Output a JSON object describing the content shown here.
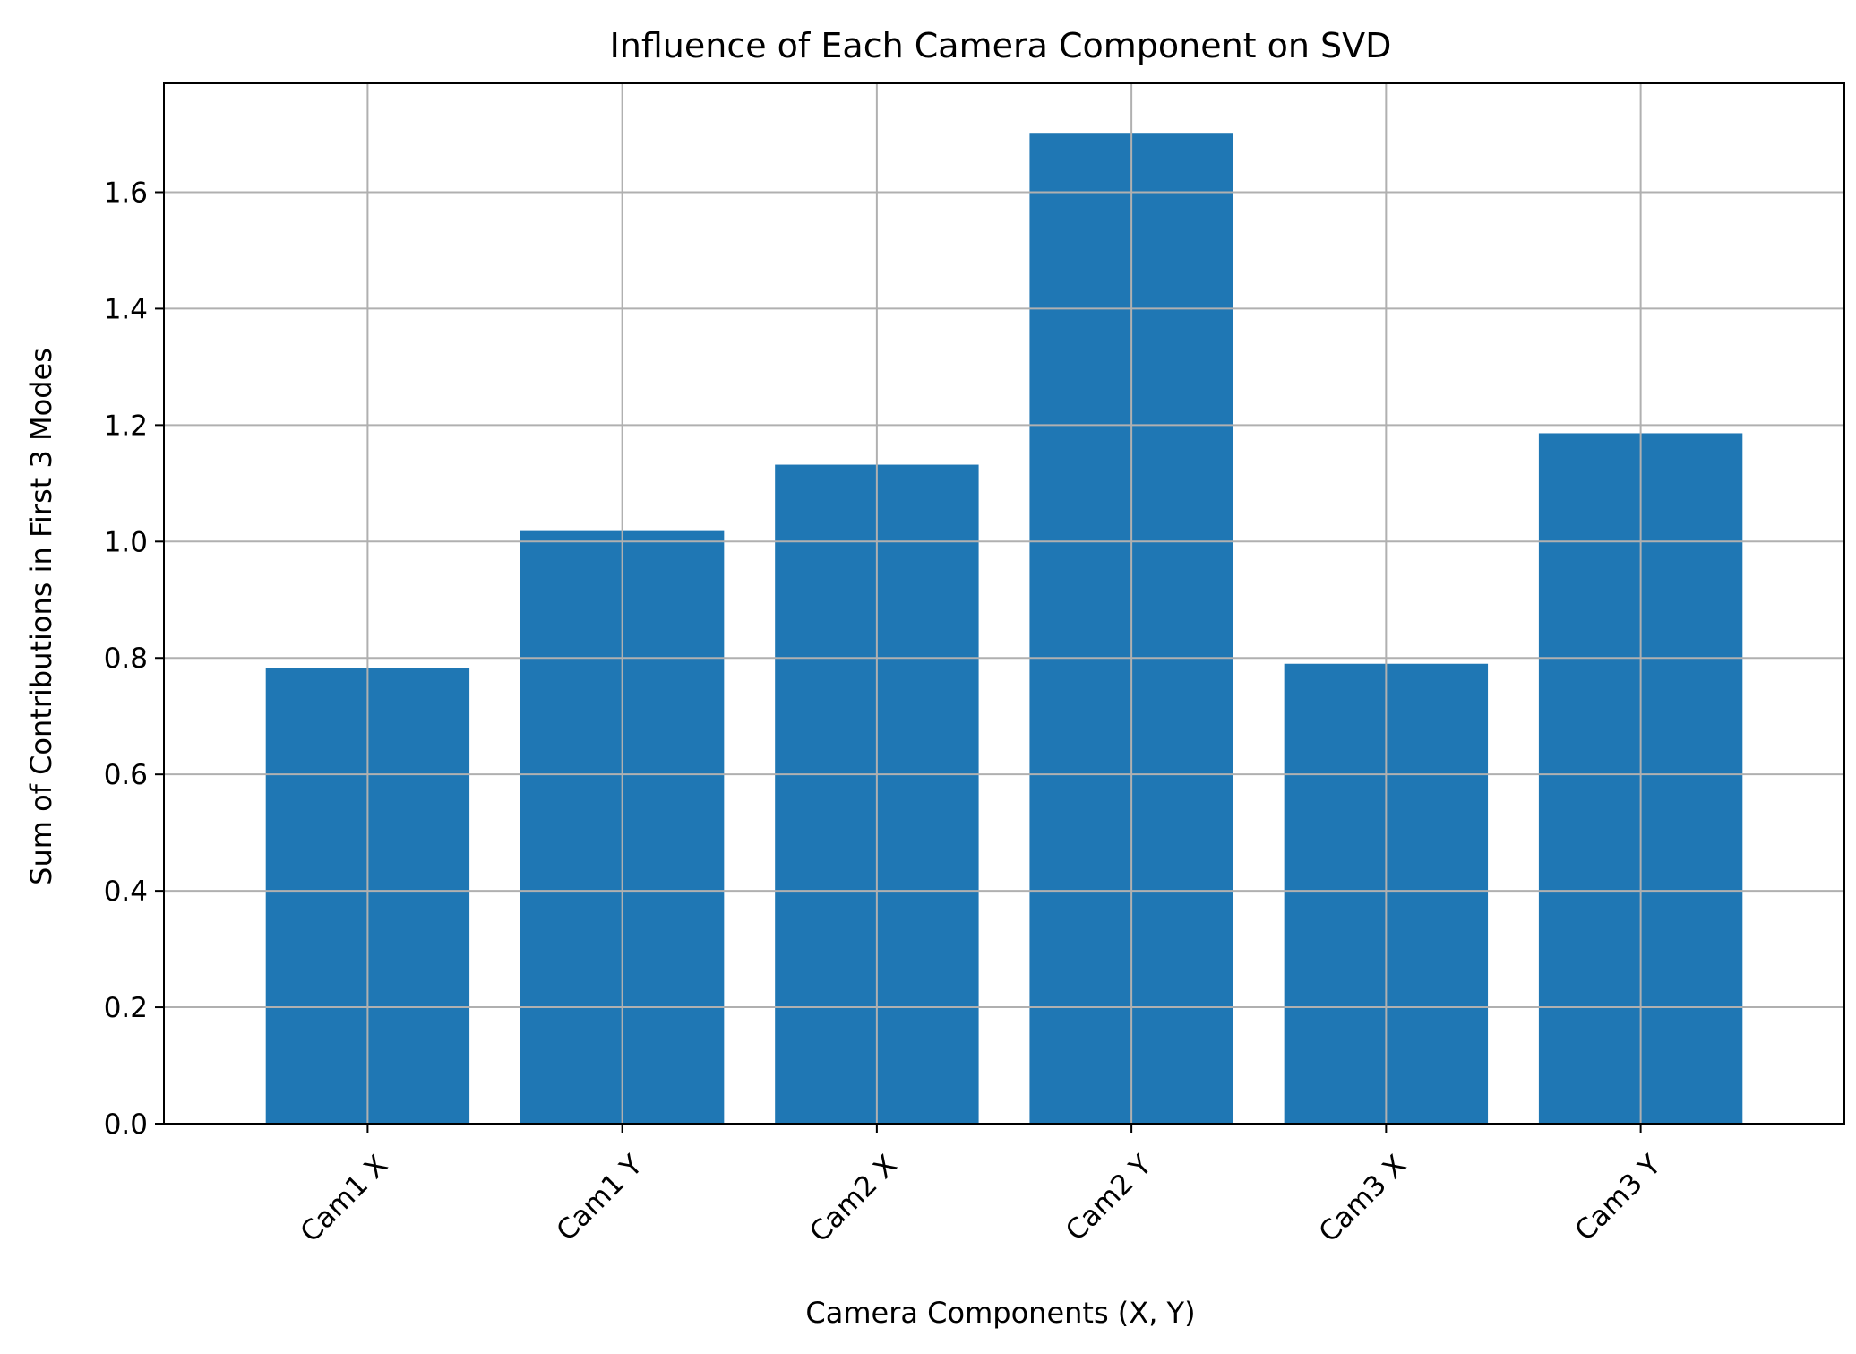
{
  "chart_data": {
    "type": "bar",
    "title": "Influence of Each Camera Component on SVD",
    "xlabel": "Camera Components (X, Y)",
    "ylabel": "Sum of Contributions in First 3 Modes",
    "categories": [
      "Cam1 X",
      "Cam1 Y",
      "Cam2 X",
      "Cam2 Y",
      "Cam3 X",
      "Cam3 Y"
    ],
    "values": [
      0.782,
      1.018,
      1.132,
      1.702,
      0.79,
      1.186
    ],
    "ylim": [
      0,
      1.787
    ],
    "yticks": [
      0.0,
      0.2,
      0.4,
      0.6,
      0.8,
      1.0,
      1.2,
      1.4,
      1.6
    ],
    "ytick_labels": [
      "0.0",
      "0.2",
      "0.4",
      "0.6",
      "0.8",
      "1.0",
      "1.2",
      "1.4",
      "1.6"
    ],
    "grid": true,
    "bar_color": "#1f77b4",
    "grid_color": "#b0b0b0",
    "xtick_rotation_deg": 45
  }
}
